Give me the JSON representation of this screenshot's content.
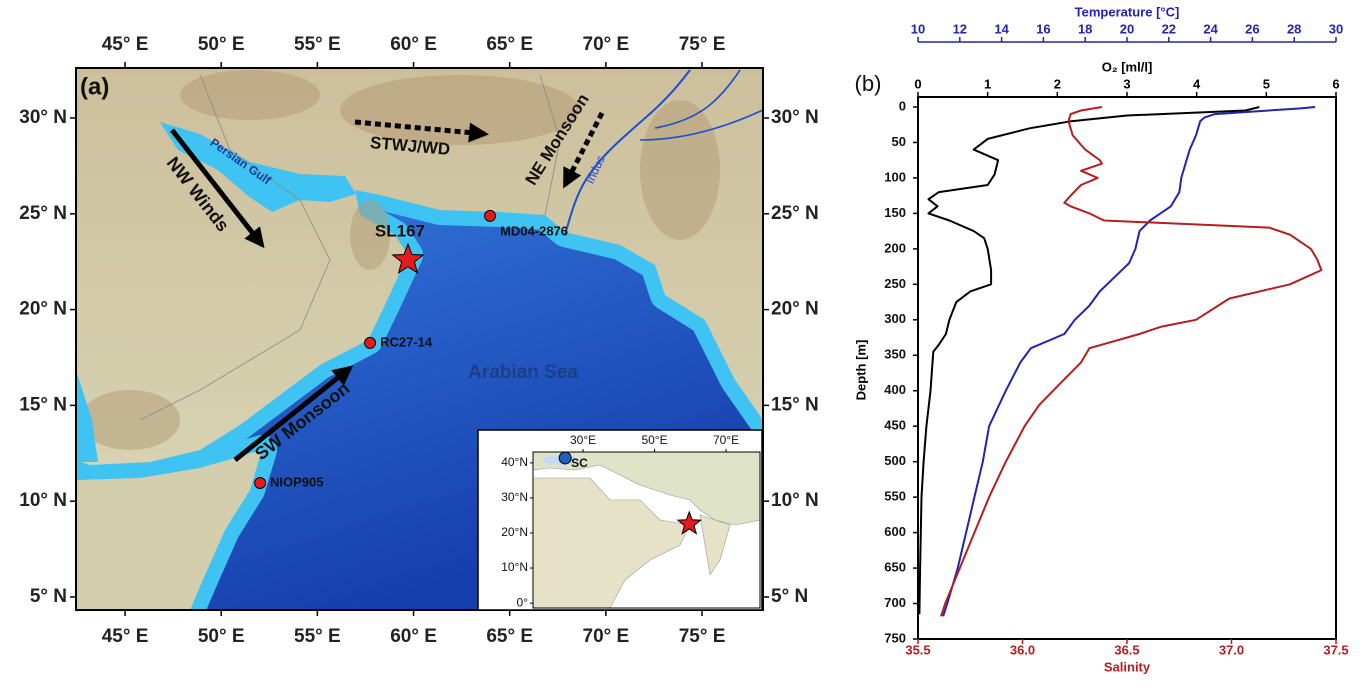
{
  "map": {
    "label": "(a)",
    "xlim": [
      42.45,
      78.17
    ],
    "ylim": [
      4.32,
      32.61
    ],
    "xticks": [
      {
        "value": 45,
        "label": "45° E"
      },
      {
        "value": 50,
        "label": "50° E"
      },
      {
        "value": 55,
        "label": "55° E"
      },
      {
        "value": 60,
        "label": "60° E"
      },
      {
        "value": 65,
        "label": "65° E"
      },
      {
        "value": 70,
        "label": "70° E"
      },
      {
        "value": 75,
        "label": "75° E"
      }
    ],
    "yticks": [
      {
        "value": 5,
        "label": "5° N"
      },
      {
        "value": 10,
        "label": "10° N"
      },
      {
        "value": 15,
        "label": "15° N"
      },
      {
        "value": 20,
        "label": "20° N"
      },
      {
        "value": 25,
        "label": "25° N"
      },
      {
        "value": 30,
        "label": "30° N"
      }
    ],
    "place_names": [
      "Persian Gulf",
      "Arabian Sea",
      "Indus"
    ],
    "winds": [
      "NW Winds",
      "STWJ/WD",
      "NE Monsoon",
      "SW Monsoon"
    ],
    "sites": [
      {
        "name": "SL167",
        "lon": 59.71,
        "lat": 22.59,
        "marker": "star"
      },
      {
        "name": "MD04-2876",
        "lon": 63.98,
        "lat": 24.89,
        "marker": "circle"
      },
      {
        "name": "RC27-14",
        "lon": 57.74,
        "lat": 18.26,
        "marker": "circle"
      },
      {
        "name": "NIOP905",
        "lon": 52.02,
        "lat": 10.95,
        "marker": "circle"
      }
    ],
    "site_color": "#e41a1c",
    "inset": {
      "xlim": [
        16.0,
        79.5
      ],
      "ylim": [
        -1.4,
        43.1
      ],
      "xticks": [
        {
          "value": 30,
          "label": "30°E"
        },
        {
          "value": 50,
          "label": "50°E"
        },
        {
          "value": 70,
          "label": "70°E"
        }
      ],
      "yticks": [
        {
          "value": 0,
          "label": "0°"
        },
        {
          "value": 10,
          "label": "10°N"
        },
        {
          "value": 20,
          "label": "20°N"
        },
        {
          "value": 30,
          "label": "30°N"
        },
        {
          "value": 40,
          "label": "40°N"
        }
      ],
      "sites": [
        {
          "name": "SC",
          "lon": 25.0,
          "lat": 41.4,
          "marker": "circle",
          "color": "#1f5fbf"
        },
        {
          "lon": 59.71,
          "lat": 22.59,
          "marker": "star",
          "color": "#e41a1c"
        }
      ]
    }
  },
  "chart_data": {
    "type": "line",
    "panel_label": "(b)",
    "y_label": "Depth [m]",
    "ylim": [
      0,
      750
    ],
    "y_inverted": true,
    "yticks": [
      0,
      50,
      100,
      150,
      200,
      250,
      300,
      350,
      400,
      450,
      500,
      550,
      600,
      650,
      700,
      750
    ],
    "axes": [
      {
        "label": "Temperature [°C]",
        "color": "#2323b0",
        "position": "top",
        "lim": [
          10,
          30
        ],
        "ticks": [
          10,
          12,
          14,
          16,
          18,
          20,
          22,
          24,
          26,
          28,
          30
        ]
      },
      {
        "label": "O₂ [ml/l]",
        "color": "#000000",
        "position": "top",
        "lim": [
          0,
          6
        ],
        "ticks": [
          0,
          1,
          2,
          3,
          4,
          5,
          6
        ]
      },
      {
        "label": "Salinity",
        "color": "#b41e1e",
        "position": "bottom",
        "lim": [
          35.5,
          37.5
        ],
        "ticks": [
          35.5,
          {
            "value": 36,
            "label": "36.0"
          },
          36.5,
          {
            "value": 37,
            "label": "37.0"
          },
          37.5
        ]
      }
    ],
    "series": [
      {
        "axis": 1,
        "color": "#000000",
        "depth": [
          0,
          5,
          12,
          20,
          30,
          45,
          60,
          75,
          95,
          110,
          120,
          130,
          140,
          150,
          160,
          175,
          185,
          200,
          230,
          250,
          260,
          275,
          300,
          320,
          335,
          345,
          400,
          450,
          500,
          550,
          600,
          650,
          715
        ],
        "values": [
          4.9,
          4.7,
          3.0,
          2.2,
          1.6,
          1.0,
          0.8,
          1.15,
          1.1,
          1.0,
          0.3,
          0.15,
          0.28,
          0.15,
          0.45,
          0.8,
          0.95,
          1.0,
          1.05,
          1.05,
          0.75,
          0.55,
          0.45,
          0.4,
          0.3,
          0.22,
          0.18,
          0.12,
          0.08,
          0.05,
          0.04,
          0.03,
          0.02
        ]
      },
      {
        "axis": 0,
        "color": "#2323b0",
        "depth": [
          0,
          2,
          10,
          15,
          20,
          40,
          60,
          80,
          100,
          120,
          140,
          150,
          160,
          175,
          200,
          220,
          240,
          260,
          280,
          300,
          320,
          340,
          360,
          400,
          450,
          500,
          550,
          600,
          650,
          700,
          718
        ],
        "values": [
          29.0,
          28.3,
          24.2,
          23.7,
          23.5,
          23.3,
          23.0,
          22.8,
          22.6,
          22.5,
          22.1,
          21.6,
          21.1,
          20.6,
          20.4,
          20.1,
          19.4,
          18.7,
          18.2,
          17.5,
          17.0,
          15.4,
          14.9,
          14.2,
          13.4,
          13.1,
          12.7,
          12.3,
          11.9,
          11.4,
          11.2
        ]
      },
      {
        "axis": 2,
        "color": "#b41e1e",
        "depth": [
          0,
          5,
          10,
          20,
          40,
          60,
          75,
          80,
          90,
          100,
          110,
          125,
          135,
          140,
          150,
          160,
          170,
          180,
          200,
          215,
          230,
          250,
          270,
          300,
          310,
          320,
          340,
          360,
          390,
          420,
          450,
          500,
          550,
          600,
          650,
          700,
          718
        ],
        "values": [
          36.38,
          36.28,
          36.23,
          36.22,
          36.24,
          36.3,
          36.37,
          36.38,
          36.28,
          36.36,
          36.28,
          36.23,
          36.2,
          36.23,
          36.32,
          36.39,
          37.18,
          37.28,
          37.38,
          37.41,
          37.43,
          37.28,
          36.99,
          36.83,
          36.66,
          36.56,
          36.32,
          36.28,
          36.18,
          36.08,
          36.01,
          35.92,
          35.84,
          35.77,
          35.7,
          35.63,
          35.61
        ]
      }
    ]
  }
}
